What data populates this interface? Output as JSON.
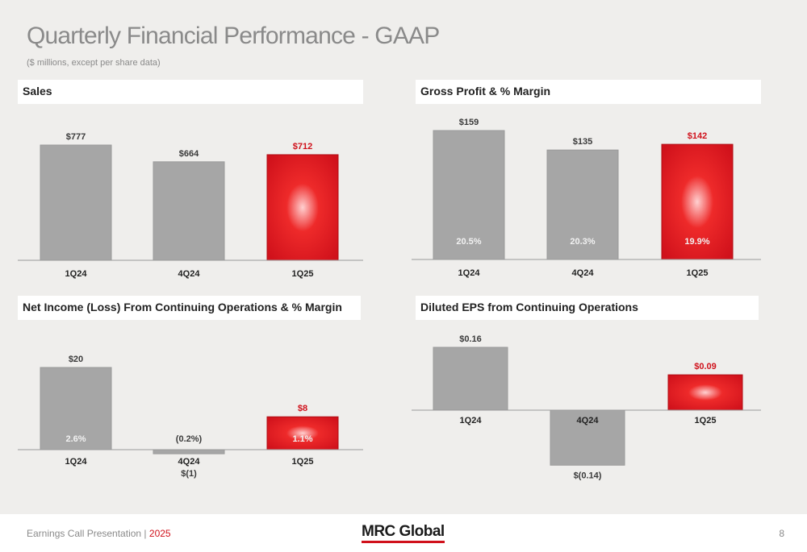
{
  "title": "Quarterly Financial Performance - GAAP",
  "subtitle": "($ millions, except per share data)",
  "colors": {
    "bar_gray": "#a6a6a6",
    "bar_red": "#d0111b",
    "highlight_text": "#d0111b",
    "label_text": "#3a3a3a"
  },
  "chart_data": [
    {
      "type": "bar",
      "title": "Sales",
      "categories": [
        "1Q24",
        "4Q24",
        "1Q25"
      ],
      "values": [
        777,
        664,
        712
      ],
      "value_labels": [
        "$777",
        "$664",
        "$712"
      ],
      "highlight_index": 2,
      "ylim": [
        0,
        777
      ]
    },
    {
      "type": "bar",
      "title": "Gross Profit & % Margin",
      "categories": [
        "1Q24",
        "4Q24",
        "1Q25"
      ],
      "values": [
        159,
        135,
        142
      ],
      "value_labels": [
        "$159",
        "$135",
        "$142"
      ],
      "inner_labels": [
        "20.5%",
        "20.3%",
        "19.9%"
      ],
      "highlight_index": 2,
      "ylim": [
        0,
        159
      ]
    },
    {
      "type": "bar",
      "title": "Net Income (Loss) From Continuing Operations & % Margin",
      "categories": [
        "1Q24",
        "4Q24",
        "1Q25"
      ],
      "values": [
        20,
        -1,
        8
      ],
      "value_labels": [
        "$20",
        "$(1)",
        "$8"
      ],
      "inner_labels": [
        "2.6%",
        "(0.2%)",
        "1.1%"
      ],
      "highlight_index": 2,
      "ylim": [
        -1,
        20
      ]
    },
    {
      "type": "bar",
      "title": "Diluted EPS from Continuing Operations",
      "categories": [
        "1Q24",
        "4Q24",
        "1Q25"
      ],
      "values": [
        0.16,
        -0.14,
        0.09
      ],
      "value_labels": [
        "$0.16",
        "$(0.14)",
        "$0.09"
      ],
      "highlight_index": 2,
      "ylim": [
        -0.14,
        0.16
      ]
    }
  ],
  "footer": {
    "presentation": "Earnings Call Presentation",
    "separator": "|",
    "year": "2025",
    "logo": "MRC Global",
    "page_number": "8"
  }
}
